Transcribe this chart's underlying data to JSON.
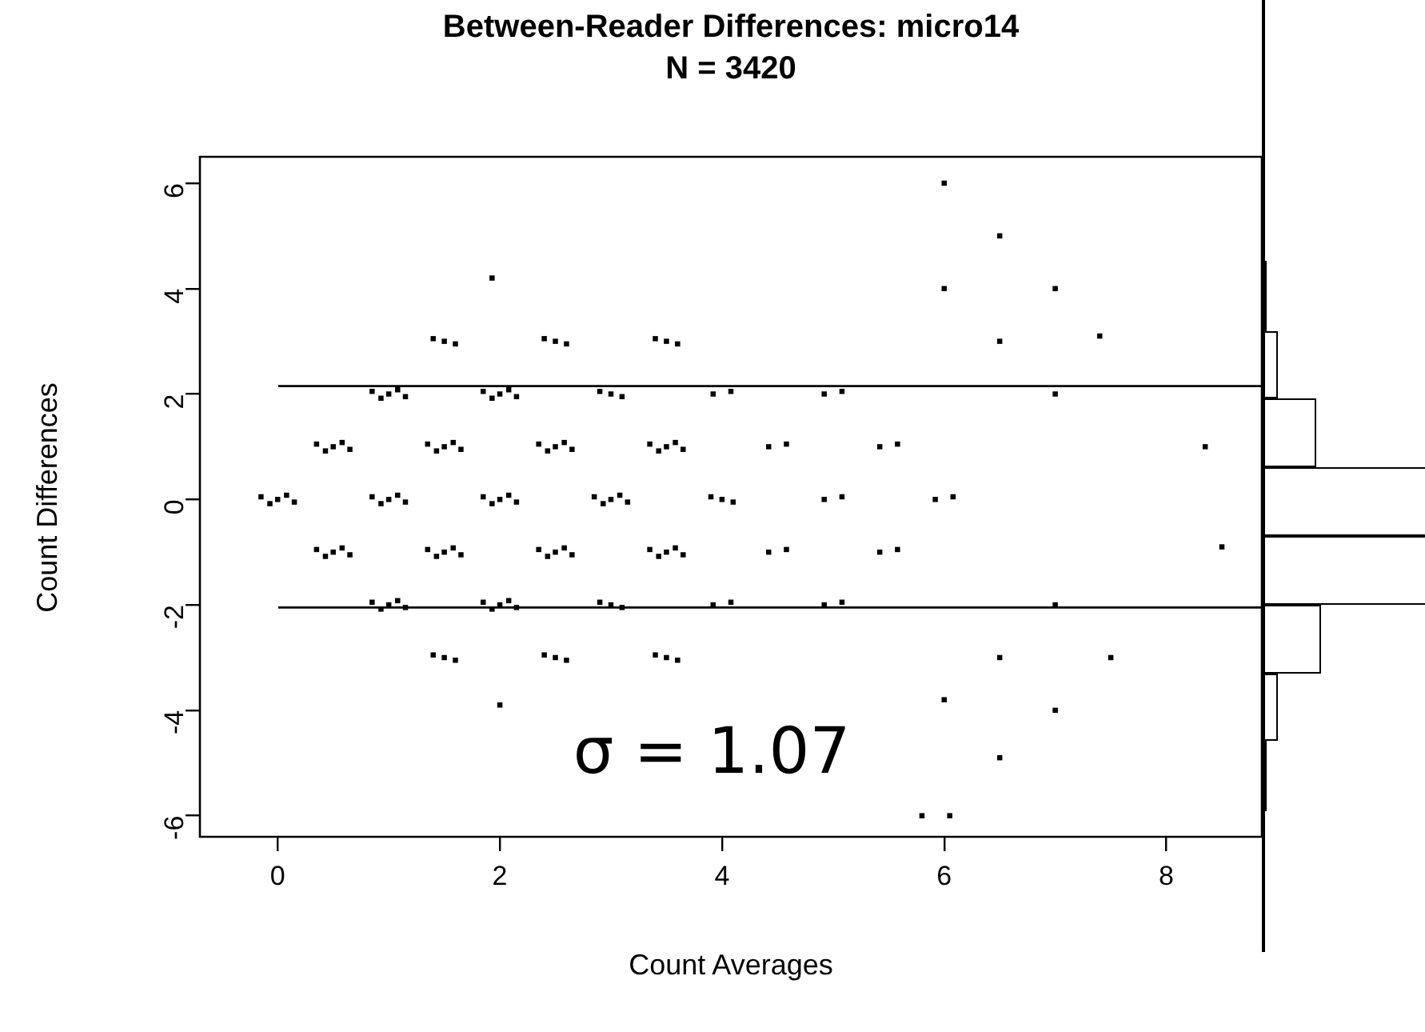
{
  "chart_data": [
    {
      "type": "scatter",
      "title": "Between-Reader Differences: micro14",
      "subtitle": "N = 3420",
      "xlabel": "Count Averages",
      "ylabel": "Count Differences",
      "xlim": [
        -0.7,
        8.86
      ],
      "ylim": [
        -6.4,
        6.5
      ],
      "xticks": [
        0,
        2,
        4,
        6,
        8
      ],
      "yticks": [
        -6,
        -4,
        -2,
        0,
        2,
        4,
        6
      ],
      "marker": "square",
      "ref_lines": [
        {
          "axis": "y",
          "value": 2.15
        },
        {
          "axis": "y",
          "value": -2.05
        }
      ],
      "annotations": [
        "σ = 1.07"
      ],
      "series": [
        {
          "color": "#000000",
          "x": [
            0,
            -0.15,
            0.15,
            -0.07,
            0.08,
            1,
            0.85,
            1.15,
            0.93,
            1.08,
            2,
            1.85,
            2.15,
            1.93,
            2.08,
            3,
            2.85,
            3.15,
            2.93,
            3.08,
            0.5,
            0.35,
            0.65,
            0.43,
            0.58,
            1.5,
            1.35,
            1.65,
            1.43,
            1.58,
            2.5,
            2.35,
            2.65,
            2.43,
            2.58,
            3.5,
            3.35,
            3.65,
            3.43,
            3.58,
            0.5,
            0.35,
            0.65,
            0.43,
            0.58,
            1.5,
            1.35,
            1.65,
            1.43,
            1.58,
            2.5,
            2.35,
            2.65,
            2.43,
            2.58,
            3.5,
            3.35,
            3.65,
            3.43,
            3.58,
            1,
            0.85,
            1.15,
            0.93,
            1.08,
            2,
            1.85,
            2.15,
            1.93,
            2.08,
            1,
            0.85,
            1.15,
            0.93,
            1.08,
            2,
            1.85,
            2.15,
            1.93,
            2.08,
            3.9,
            4,
            4.1,
            2.9,
            3,
            3.1,
            2.9,
            3,
            3.1,
            1.4,
            1.5,
            1.6,
            2.4,
            2.5,
            2.6,
            3.4,
            3.5,
            3.6,
            1.4,
            1.5,
            1.6,
            2.4,
            2.5,
            2.6,
            3.4,
            3.5,
            3.6,
            4.92,
            5.08,
            5.92,
            6.08,
            4.42,
            4.58,
            5.42,
            5.58,
            4.42,
            4.58,
            5.42,
            5.58,
            3.92,
            4.08,
            4.92,
            5.08,
            3.92,
            4.08,
            4.92,
            5.08,
            7,
            7,
            6.5,
            7.4,
            6.5,
            7.5,
            1.93,
            6,
            7,
            6.5,
            6,
            2,
            6,
            7,
            6.5,
            5.8,
            6.05,
            8.35,
            8.5
          ],
          "values": [
            0,
            0.05,
            -0.05,
            -0.08,
            0.08,
            0,
            0.05,
            -0.05,
            -0.08,
            0.08,
            0,
            0.05,
            -0.05,
            -0.08,
            0.08,
            0,
            0.05,
            -0.05,
            -0.08,
            0.08,
            1,
            1.05,
            0.95,
            0.92,
            1.08,
            1,
            1.05,
            0.95,
            0.92,
            1.08,
            1,
            1.05,
            0.95,
            0.92,
            1.08,
            1,
            1.05,
            0.95,
            0.92,
            1.08,
            -1,
            -0.95,
            -1.05,
            -1.08,
            -0.92,
            -1,
            -0.95,
            -1.05,
            -1.08,
            -0.92,
            -1,
            -0.95,
            -1.05,
            -1.08,
            -0.92,
            -1,
            -0.95,
            -1.05,
            -1.08,
            -0.92,
            2,
            2.05,
            1.95,
            1.92,
            2.08,
            2,
            2.05,
            1.95,
            1.92,
            2.08,
            -2,
            -1.95,
            -2.05,
            -2.08,
            -1.92,
            -2,
            -1.95,
            -2.05,
            -2.08,
            -1.92,
            0.05,
            0,
            -0.05,
            2.05,
            2,
            1.95,
            -1.95,
            -2,
            -2.05,
            3.05,
            3,
            2.95,
            3.05,
            3,
            2.95,
            3.05,
            3,
            2.95,
            -2.95,
            -3,
            -3.05,
            -2.95,
            -3,
            -3.05,
            -2.95,
            -3,
            -3.05,
            0,
            0.05,
            0,
            0.05,
            1,
            1.05,
            1,
            1.05,
            -1,
            -0.95,
            -1,
            -0.95,
            2,
            2.05,
            2,
            2.05,
            -2,
            -1.95,
            -2,
            -1.95,
            2,
            -2,
            3,
            3.1,
            -3,
            -3,
            4.2,
            4,
            4,
            5,
            6,
            -3.9,
            -3.8,
            -4,
            -4.9,
            -6,
            -6,
            1,
            -0.9
          ]
        }
      ]
    }
  ]
}
